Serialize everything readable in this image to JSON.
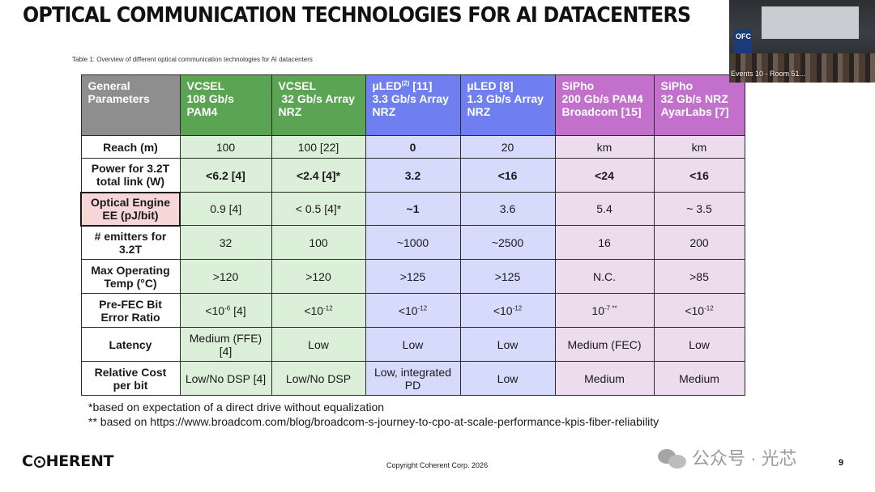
{
  "title": "OPTICAL COMMUNICATION TECHNOLOGIES FOR AI DATACENTERS",
  "caption": "Table 1: Overview of different optical communication technologies for AI datacenters",
  "colors": {
    "general_header": "#8e8e8e",
    "vcsel_header": "#5aa454",
    "uled_header": "#6f7fef",
    "sipho_header": "#c270cc",
    "vcsel_cell": "#dcefd9",
    "uled_cell": "#d6dafb",
    "sipho_cell": "#ecdcee",
    "highlight_cell": "#f6d6d6"
  },
  "table": {
    "header": [
      {
        "l1": "General",
        "l2": "Parameters",
        "l3": ""
      },
      {
        "l1": "VCSEL",
        "l2": "108 Gb/s",
        "l3": "PAM4"
      },
      {
        "l1": "VCSEL",
        "l2": " 32 Gb/s Array",
        "l3": "NRZ"
      },
      {
        "l1": "µLED",
        "sup": "(2)",
        "l1b": " [11]",
        "l2": "3.3 Gb/s Array",
        "l3": "NRZ"
      },
      {
        "l1": "µLED [8]",
        "l2": "1.3 Gb/s Array",
        "l3": "NRZ"
      },
      {
        "l1": "SiPho",
        "l2": "200 Gb/s PAM4",
        "l3": "Broadcom [15]"
      },
      {
        "l1": "SiPho",
        "l2": "32 Gb/s NRZ",
        "l3": "AyarLabs [7]"
      }
    ],
    "rows": [
      {
        "label": [
          "Reach (m)"
        ],
        "cells": [
          "100",
          "100 [22]",
          "0",
          "20",
          "km",
          "km"
        ]
      },
      {
        "label": [
          "Power for 3.2T",
          "total link (W)"
        ],
        "cells": [
          "<6.2 [4]",
          "<2.4 [4]*",
          "3.2",
          "<16",
          "<24",
          "<16"
        ]
      },
      {
        "label": [
          "Optical Engine",
          "EE (pJ/bit)"
        ],
        "cells": [
          "0.9 [4]",
          "< 0.5 [4]*",
          "~1",
          "3.6",
          "5.4",
          "~ 3.5"
        ]
      },
      {
        "label": [
          "# emitters for",
          "3.2T"
        ],
        "cells": [
          "32",
          "100",
          "~1000",
          "~2500",
          "16",
          "200"
        ]
      },
      {
        "label": [
          "Max Operating",
          "Temp (°C)"
        ],
        "cells": [
          ">120",
          ">120",
          ">125",
          ">125",
          "N.C.",
          ">85"
        ]
      },
      {
        "label": [
          "Pre-FEC Bit",
          "Error Ratio"
        ],
        "cells": [
          {
            "base": "<10",
            "exp": "-6",
            "tail": " [4]"
          },
          {
            "base": "<10",
            "exp": "-12",
            "tail": ""
          },
          {
            "base": "<10",
            "exp": "-12",
            "tail": ""
          },
          {
            "base": "<10",
            "exp": "-12",
            "tail": ""
          },
          {
            "base": "10",
            "exp": "-7 **",
            "tail": ""
          },
          {
            "base": "<10",
            "exp": "-12",
            "tail": ""
          }
        ]
      },
      {
        "label": [
          "Latency"
        ],
        "cells": [
          "Medium (FFE) [4]",
          "Low",
          "Low",
          "Low",
          "Medium (FEC)",
          "Low"
        ]
      },
      {
        "label": [
          "Relative Cost",
          "per bit"
        ],
        "cells": [
          "Low/No DSP [4]",
          "Low/No DSP",
          "Low, integrated PD",
          "Low",
          "Medium",
          "Medium"
        ]
      }
    ]
  },
  "footnotes": [
    "*based on expectation of a direct drive without equalization",
    "** based on https://www.broadcom.com/blog/broadcom-s-journey-to-cpo-at-scale-performance-kpis-fiber-reliability"
  ],
  "logo": {
    "pre": "C",
    "post": "HERENT"
  },
  "copyright": "Copyright Coherent Corp. 2026",
  "page_number": "9",
  "watermark": "公众号 · 光芯",
  "video": {
    "caption": "Events 10 - Room 51...",
    "podium_label": "OFC"
  }
}
